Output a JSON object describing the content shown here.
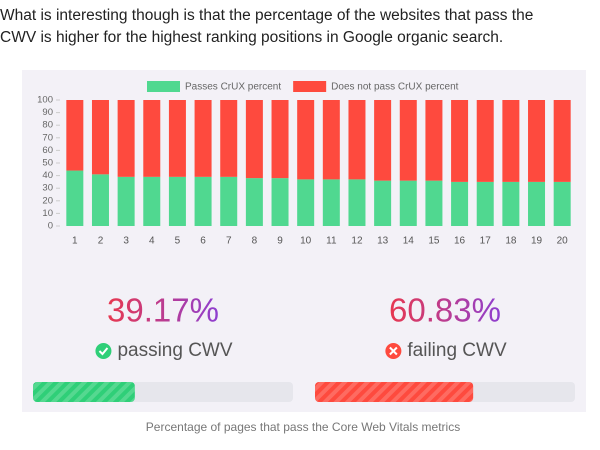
{
  "intro": [
    "What is interesting though is that the percentage of the websites that pass the",
    "CWV is higher for the highest ranking positions in Google organic search."
  ],
  "chart_data": {
    "type": "stacked_bar",
    "categories": [
      "1",
      "2",
      "3",
      "4",
      "5",
      "6",
      "7",
      "8",
      "9",
      "10",
      "11",
      "12",
      "13",
      "14",
      "15",
      "16",
      "17",
      "18",
      "19",
      "20"
    ],
    "series": [
      {
        "name": "Passes CrUX percent",
        "color": "#50d890",
        "values": [
          44,
          41,
          39,
          39,
          39,
          39,
          39,
          38,
          38,
          37,
          37,
          37,
          36,
          36,
          36,
          35,
          35,
          35,
          35,
          35
        ]
      },
      {
        "name": "Does not pass CrUX percent",
        "color": "#fe4a3e",
        "values": [
          56,
          59,
          61,
          61,
          61,
          61,
          61,
          62,
          62,
          63,
          63,
          63,
          64,
          64,
          64,
          65,
          65,
          65,
          65,
          65
        ]
      }
    ],
    "ylim": [
      0,
      100
    ],
    "yticks": [
      0,
      10,
      20,
      30,
      40,
      50,
      60,
      70,
      80,
      90,
      100
    ],
    "legend": "top"
  },
  "stats": [
    {
      "value": 39.17,
      "value_label": "39.17%",
      "label": "passing CWV",
      "color": "#2fcf78"
    },
    {
      "value": 60.83,
      "value_label": "60.83%",
      "label": "failing CWV",
      "color": "#fe4a3e"
    }
  ],
  "caption": "Percentage of pages that pass the Core Web Vitals metrics"
}
